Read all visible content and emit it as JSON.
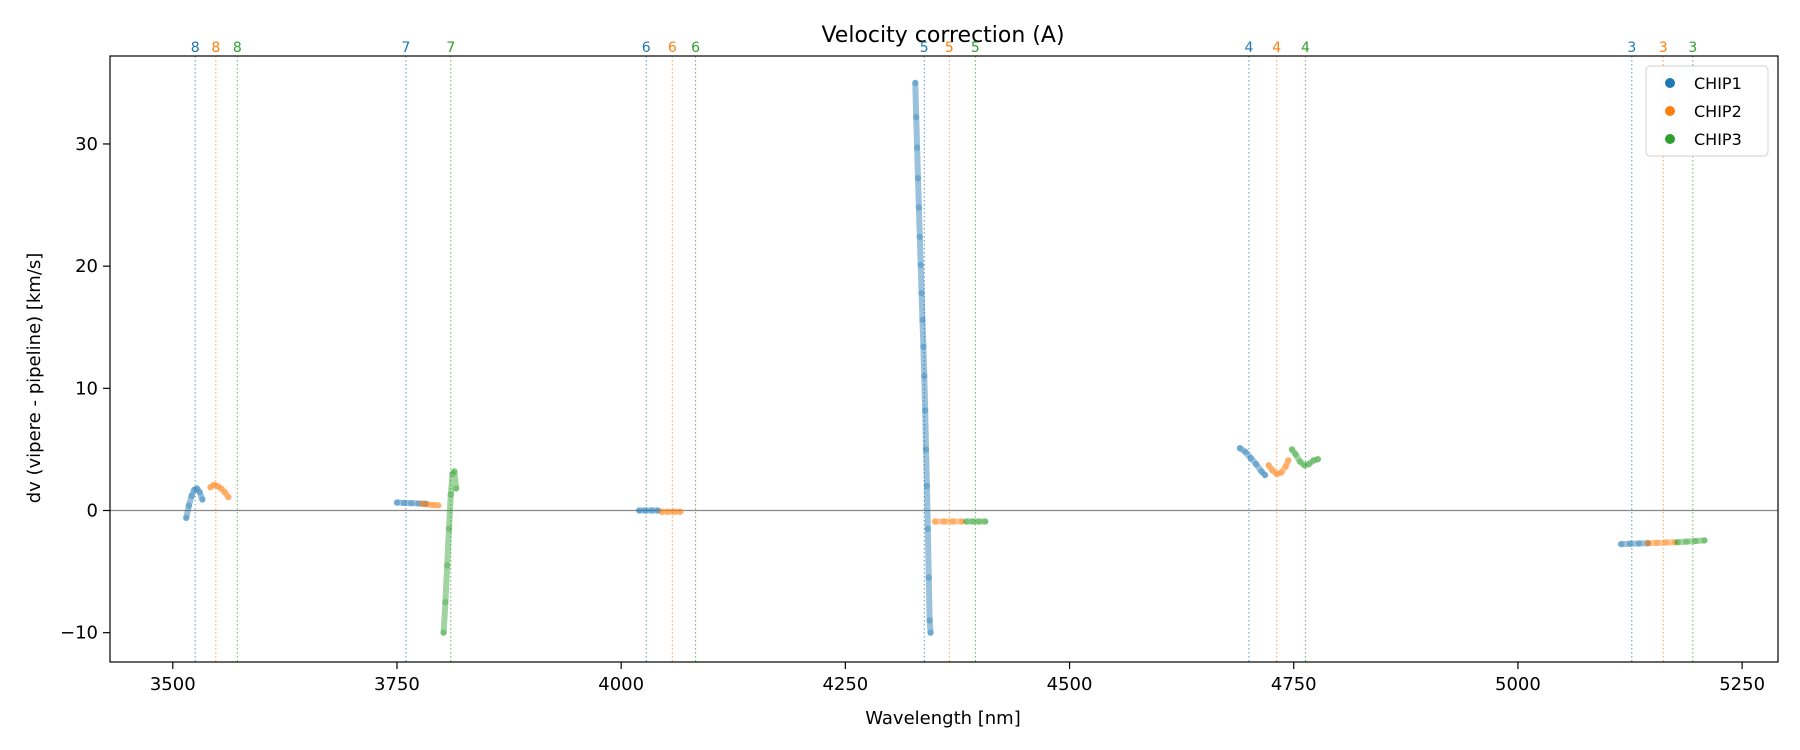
{
  "chart_data": {
    "type": "scatter",
    "title": "Velocity correction (A)",
    "xlabel": "Wavelength [nm]",
    "ylabel": "dv (vipere - pipeline) [km/s]",
    "xlim": [
      3430,
      5290
    ],
    "ylim": [
      -12.4,
      37.2
    ],
    "xticks": [
      3500,
      3750,
      4000,
      4250,
      4500,
      4750,
      5000,
      5250
    ],
    "yticks": [
      -10,
      0,
      10,
      20,
      30
    ],
    "grid": false,
    "zero_line": 0,
    "legend_placement": "top-right",
    "colors": {
      "CHIP1": "#1f77b4",
      "CHIP2": "#ff7f0e",
      "CHIP3": "#2ca02c"
    },
    "series": [
      {
        "name": "CHIP1",
        "segments": [
          {
            "x": [
              3515,
              3518,
              3521,
              3524,
              3527,
              3530,
              3533
            ],
            "y": [
              -0.6,
              0.4,
              1.2,
              1.7,
              1.8,
              1.5,
              0.9
            ]
          },
          {
            "x": [
              3750,
              3758,
              3766,
              3774,
              3782
            ],
            "y": [
              0.65,
              0.62,
              0.6,
              0.57,
              0.55
            ]
          },
          {
            "x": [
              4020,
              4027,
              4034,
              4041
            ],
            "y": [
              0.0,
              0.0,
              0.0,
              0.0
            ]
          },
          {
            "x": [
              4328,
              4329,
              4330,
              4331,
              4332,
              4333,
              4334,
              4335,
              4336,
              4337,
              4338,
              4339,
              4340,
              4341,
              4342,
              4343,
              4344,
              4345
            ],
            "y": [
              35.0,
              32.2,
              29.7,
              27.2,
              24.8,
              22.4,
              20.1,
              17.8,
              15.6,
              13.4,
              11.0,
              8.2,
              5.0,
              2.0,
              -1.5,
              -5.5,
              -9.0,
              -10.0
            ]
          },
          {
            "x": [
              4690,
              4696,
              4702,
              4708,
              4714,
              4718
            ],
            "y": [
              5.1,
              4.8,
              4.3,
              3.8,
              3.2,
              2.9
            ]
          },
          {
            "x": [
              5115,
              5125,
              5135,
              5145
            ],
            "y": [
              -2.75,
              -2.72,
              -2.7,
              -2.68
            ]
          }
        ]
      },
      {
        "name": "CHIP2",
        "segments": [
          {
            "x": [
              3542,
              3546,
              3550,
              3554,
              3558,
              3562
            ],
            "y": [
              1.9,
              2.1,
              2.0,
              1.8,
              1.5,
              1.1
            ]
          },
          {
            "x": [
              3778,
              3784,
              3790,
              3796
            ],
            "y": [
              0.55,
              0.5,
              0.45,
              0.42
            ]
          },
          {
            "x": [
              4045,
              4052,
              4059,
              4066
            ],
            "y": [
              -0.1,
              -0.1,
              -0.1,
              -0.1
            ]
          },
          {
            "x": [
              4350,
              4360,
              4370,
              4380
            ],
            "y": [
              -0.9,
              -0.9,
              -0.9,
              -0.9
            ]
          },
          {
            "x": [
              4722,
              4726,
              4731,
              4736,
              4741,
              4744
            ],
            "y": [
              3.7,
              3.3,
              3.0,
              3.1,
              3.6,
              4.1
            ]
          },
          {
            "x": [
              5145,
              5155,
              5165,
              5175
            ],
            "y": [
              -2.68,
              -2.65,
              -2.62,
              -2.6
            ]
          }
        ]
      },
      {
        "name": "CHIP3",
        "segments": [
          {
            "x": [
              3802,
              3804,
              3806,
              3808,
              3810,
              3812,
              3814,
              3816
            ],
            "y": [
              -10.0,
              -7.5,
              -4.5,
              -1.5,
              1.3,
              3.0,
              3.2,
              1.8
            ]
          },
          {
            "x": [
              4385,
              4392,
              4399,
              4406
            ],
            "y": [
              -0.9,
              -0.9,
              -0.9,
              -0.9
            ]
          },
          {
            "x": [
              4748,
              4752,
              4757,
              4762,
              4767,
              4772,
              4777
            ],
            "y": [
              5.0,
              4.6,
              4.0,
              3.7,
              3.8,
              4.1,
              4.2
            ]
          },
          {
            "x": [
              5178,
              5188,
              5198,
              5208
            ],
            "y": [
              -2.6,
              -2.55,
              -2.5,
              -2.45
            ]
          }
        ]
      }
    ],
    "order_markers": [
      {
        "x": 3525,
        "label": "8",
        "chip": "CHIP1"
      },
      {
        "x": 3548,
        "label": "8",
        "chip": "CHIP2"
      },
      {
        "x": 3572,
        "label": "8",
        "chip": "CHIP3"
      },
      {
        "x": 3760,
        "label": "7",
        "chip": "CHIP1"
      },
      {
        "x": 3810,
        "label": "7",
        "chip": "CHIP3"
      },
      {
        "x": 4028,
        "label": "6",
        "chip": "CHIP1"
      },
      {
        "x": 4057,
        "label": "6",
        "chip": "CHIP2"
      },
      {
        "x": 4083,
        "label": "6",
        "chip": "CHIP3"
      },
      {
        "x": 4338,
        "label": "5",
        "chip": "CHIP1"
      },
      {
        "x": 4366,
        "label": "5",
        "chip": "CHIP2"
      },
      {
        "x": 4395,
        "label": "5",
        "chip": "CHIP3"
      },
      {
        "x": 4700,
        "label": "4",
        "chip": "CHIP1"
      },
      {
        "x": 4731,
        "label": "4",
        "chip": "CHIP2"
      },
      {
        "x": 4763,
        "label": "4",
        "chip": "CHIP3"
      },
      {
        "x": 5127,
        "label": "3",
        "chip": "CHIP1"
      },
      {
        "x": 5162,
        "label": "3",
        "chip": "CHIP2"
      },
      {
        "x": 5195,
        "label": "3",
        "chip": "CHIP3"
      }
    ]
  }
}
